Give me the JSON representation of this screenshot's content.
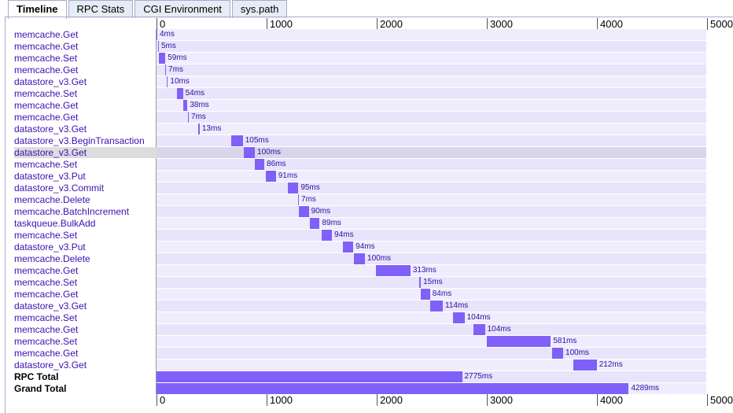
{
  "tabs": [
    "Timeline",
    "RPC Stats",
    "CGI Environment",
    "sys.path"
  ],
  "axis_ticks": [
    "0",
    "1000",
    "2000",
    "3000",
    "4000",
    "5000"
  ],
  "axis_max_ms": 5000,
  "rows": [
    {
      "label": "memcache.Get",
      "start": 0,
      "dur": 4,
      "text": "4ms"
    },
    {
      "label": "memcache.Get",
      "start": 14,
      "dur": 5,
      "text": "5ms"
    },
    {
      "label": "memcache.Set",
      "start": 21,
      "dur": 59,
      "text": "59ms"
    },
    {
      "label": "memcache.Get",
      "start": 79,
      "dur": 7,
      "text": "7ms"
    },
    {
      "label": "datastore_v3.Get",
      "start": 93,
      "dur": 10,
      "text": "10ms"
    },
    {
      "label": "memcache.Set",
      "start": 186,
      "dur": 54,
      "text": "54ms"
    },
    {
      "label": "memcache.Get",
      "start": 243,
      "dur": 38,
      "text": "38ms"
    },
    {
      "label": "memcache.Get",
      "start": 286,
      "dur": 7,
      "text": "7ms"
    },
    {
      "label": "datastore_v3.Get",
      "start": 379,
      "dur": 13,
      "text": "13ms"
    },
    {
      "label": "datastore_v3.BeginTransaction",
      "start": 679,
      "dur": 105,
      "text": "105ms"
    },
    {
      "label": "datastore_v3.Get",
      "start": 793,
      "dur": 100,
      "text": "100ms",
      "highlight": true
    },
    {
      "label": "memcache.Set",
      "start": 893,
      "dur": 86,
      "text": "86ms"
    },
    {
      "label": "datastore_v3.Put",
      "start": 993,
      "dur": 91,
      "text": "91ms"
    },
    {
      "label": "datastore_v3.Commit",
      "start": 1193,
      "dur": 95,
      "text": "95ms"
    },
    {
      "label": "memcache.Delete",
      "start": 1286,
      "dur": 7,
      "text": "7ms"
    },
    {
      "label": "memcache.BatchIncrement",
      "start": 1293,
      "dur": 90,
      "text": "90ms"
    },
    {
      "label": "taskqueue.BulkAdd",
      "start": 1393,
      "dur": 89,
      "text": "89ms"
    },
    {
      "label": "memcache.Set",
      "start": 1500,
      "dur": 94,
      "text": "94ms"
    },
    {
      "label": "datastore_v3.Put",
      "start": 1693,
      "dur": 94,
      "text": "94ms"
    },
    {
      "label": "memcache.Delete",
      "start": 1793,
      "dur": 100,
      "text": "100ms"
    },
    {
      "label": "memcache.Get",
      "start": 1993,
      "dur": 313,
      "text": "313ms"
    },
    {
      "label": "memcache.Set",
      "start": 2386,
      "dur": 15,
      "text": "15ms"
    },
    {
      "label": "memcache.Get",
      "start": 2400,
      "dur": 84,
      "text": "84ms"
    },
    {
      "label": "datastore_v3.Get",
      "start": 2486,
      "dur": 114,
      "text": "114ms"
    },
    {
      "label": "memcache.Set",
      "start": 2693,
      "dur": 104,
      "text": "104ms"
    },
    {
      "label": "memcache.Get",
      "start": 2879,
      "dur": 104,
      "text": "104ms"
    },
    {
      "label": "memcache.Set",
      "start": 3000,
      "dur": 581,
      "text": "581ms"
    },
    {
      "label": "memcache.Get",
      "start": 3593,
      "dur": 100,
      "text": "100ms"
    },
    {
      "label": "datastore_v3.Get",
      "start": 3786,
      "dur": 212,
      "text": "212ms"
    },
    {
      "label": "RPC Total",
      "start": 0,
      "dur": 2775,
      "text": "2775ms",
      "total": true
    },
    {
      "label": "Grand Total",
      "start": 0,
      "dur": 4289,
      "text": "4289ms",
      "total": true
    }
  ],
  "colors": {
    "bar": "#8060f8",
    "link": "#3a0fb0"
  }
}
